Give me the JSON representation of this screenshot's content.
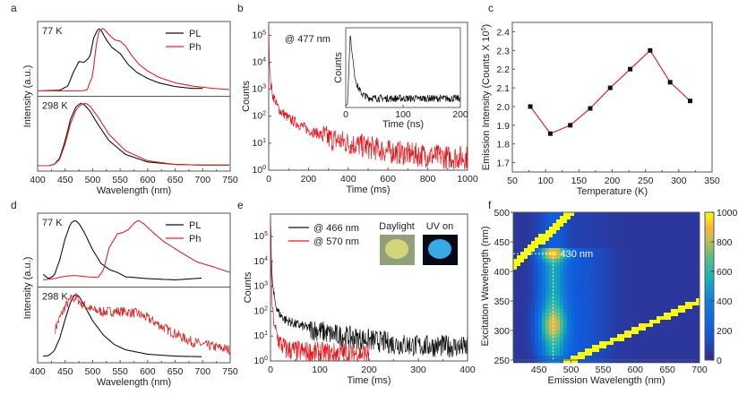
{
  "figure": {
    "panel_labels": [
      "a",
      "b",
      "c",
      "d",
      "e",
      "f"
    ]
  },
  "chart_data": [
    {
      "id": "a",
      "type": "line",
      "xlabel": "Wavelength (nm)",
      "ylabel": "Intensity (a.u.)",
      "xlim": [
        400,
        750
      ],
      "xticks": [
        400,
        450,
        500,
        550,
        600,
        650,
        700,
        750
      ],
      "legend": {
        "placement": "top-right",
        "entries": [
          {
            "name": "PL",
            "color": "#111111"
          },
          {
            "name": "Ph",
            "color": "#d42a2a"
          }
        ]
      },
      "subpanels": [
        {
          "label": "77 K",
          "series": [
            {
              "name": "PL",
              "color": "#111111",
              "x": [
                400,
                440,
                455,
                465,
                475,
                485,
                495,
                502,
                510,
                515,
                525,
                535,
                550,
                565,
                580,
                600,
                620,
                650,
                680,
                700
              ],
              "y": [
                0,
                0.01,
                0.08,
                0.3,
                0.47,
                0.46,
                0.55,
                0.85,
                1.0,
                0.98,
                0.82,
                0.7,
                0.6,
                0.42,
                0.3,
                0.2,
                0.13,
                0.07,
                0.04,
                0.04
              ]
            },
            {
              "name": "Ph",
              "color": "#d42a2a",
              "x": [
                400,
                480,
                490,
                500,
                505,
                510,
                515,
                520,
                530,
                540,
                550,
                560,
                570,
                585,
                600,
                620,
                650,
                680,
                720,
                750
              ],
              "y": [
                0,
                0,
                0.02,
                0.25,
                0.62,
                0.92,
                0.99,
                1.0,
                0.9,
                0.82,
                0.8,
                0.72,
                0.58,
                0.42,
                0.32,
                0.22,
                0.13,
                0.08,
                0.04,
                0.02
              ]
            }
          ]
        },
        {
          "label": "298 K",
          "series": [
            {
              "name": "PL",
              "color": "#111111",
              "x": [
                400,
                420,
                430,
                440,
                450,
                460,
                470,
                478,
                485,
                495,
                510,
                530,
                560,
                600,
                650,
                700,
                750
              ],
              "y": [
                0,
                0,
                0.02,
                0.12,
                0.4,
                0.75,
                0.95,
                1.0,
                0.98,
                0.88,
                0.66,
                0.4,
                0.18,
                0.06,
                0.02,
                0.01,
                0.01
              ]
            },
            {
              "name": "Ph",
              "color": "#d42a2a",
              "x": [
                400,
                420,
                430,
                440,
                450,
                460,
                470,
                480,
                488,
                495,
                510,
                530,
                560,
                600,
                650,
                700,
                750
              ],
              "y": [
                0,
                0,
                0.02,
                0.1,
                0.35,
                0.68,
                0.9,
                0.99,
                1.0,
                0.96,
                0.78,
                0.5,
                0.24,
                0.08,
                0.02,
                0.01,
                0.01
              ]
            }
          ]
        }
      ]
    },
    {
      "id": "b",
      "type": "line",
      "title": "",
      "annotation": "@ 477 nm",
      "xlabel": "Time (ms)",
      "ylabel": "Counts",
      "xlim": [
        0,
        1000
      ],
      "yscale": "log",
      "ylim": [
        1,
        300000
      ],
      "xticks": [
        0,
        200,
        400,
        600,
        800,
        1000
      ],
      "yticks": [
        "10^0",
        "10^1",
        "10^2",
        "10^3",
        "10^4",
        "10^5"
      ],
      "series": [
        {
          "name": "@ 477 nm",
          "color": "#e0191e",
          "x": [
            0,
            2,
            5,
            10,
            20,
            40,
            60,
            100,
            150,
            200,
            300,
            400,
            500,
            600,
            700,
            800,
            900,
            1000
          ],
          "y": [
            200000,
            30000,
            5000,
            1500,
            600,
            250,
            150,
            80,
            50,
            30,
            15,
            10,
            7,
            5,
            4,
            3.5,
            3,
            3
          ]
        }
      ],
      "inset": {
        "xlabel": "Time (ns)",
        "ylabel": "Counts",
        "xlim": [
          0,
          200
        ],
        "xticks": [
          0,
          100,
          200
        ],
        "series": [
          {
            "name": "inset",
            "color": "#111111",
            "x": [
              0,
              3,
              5,
              8,
              10,
              15,
              20,
              25,
              30,
              40,
              60,
              100,
              150,
              200
            ],
            "y": [
              0,
              0.02,
              0.4,
              1.0,
              0.8,
              0.45,
              0.28,
              0.2,
              0.15,
              0.11,
              0.1,
              0.1,
              0.1,
              0.1
            ]
          }
        ]
      }
    },
    {
      "id": "c",
      "type": "line",
      "xlabel": "Temperature (K)",
      "ylabel": "Emission Intensity (Counts X 10^5)",
      "xlim": [
        50,
        350
      ],
      "ylim": [
        1.65,
        2.45
      ],
      "xticks": [
        50,
        100,
        150,
        200,
        250,
        300,
        350
      ],
      "yticks": [
        1.7,
        1.8,
        1.9,
        2.0,
        2.1,
        2.2,
        2.3,
        2.4
      ],
      "series": [
        {
          "name": "Emission Intensity",
          "line_color": "#d42a2a",
          "marker_color": "#111111",
          "x": [
            77,
            107,
            137,
            167,
            197,
            227,
            257,
            287,
            317
          ],
          "y": [
            2.0,
            1.855,
            1.9,
            1.99,
            2.1,
            2.2,
            2.3,
            2.13,
            2.03
          ]
        }
      ]
    },
    {
      "id": "d",
      "type": "line",
      "xlabel": "Wavelength (nm)",
      "ylabel": "Intensity (a.u.)",
      "xlim": [
        400,
        750
      ],
      "xticks": [
        400,
        450,
        500,
        550,
        600,
        650,
        700,
        750
      ],
      "legend": {
        "placement": "top-right",
        "entries": [
          {
            "name": "PL",
            "color": "#111111"
          },
          {
            "name": "Ph",
            "color": "#d42a2a"
          }
        ]
      },
      "subpanels": [
        {
          "label": "77 K",
          "series": [
            {
              "name": "PL",
              "color": "#111111",
              "x": [
                410,
                420,
                430,
                440,
                450,
                460,
                468,
                475,
                485,
                500,
                515,
                530,
                545,
                560,
                600,
                650,
                700
              ],
              "y": [
                0.12,
                0.05,
                0.1,
                0.35,
                0.7,
                0.95,
                1.0,
                0.95,
                0.8,
                0.52,
                0.3,
                0.2,
                0.15,
                0.08,
                0.05,
                0.03,
                0.06
              ]
            },
            {
              "name": "Ph",
              "color": "#d42a2a",
              "x": [
                410,
                430,
                450,
                468,
                490,
                510,
                520,
                530,
                545,
                555,
                565,
                575,
                583,
                595,
                610,
                630,
                660,
                690,
                720,
                750
              ],
              "y": [
                0.03,
                0.05,
                0.09,
                0.1,
                0.08,
                0.07,
                0.2,
                0.55,
                0.78,
                0.8,
                0.85,
                0.95,
                1.0,
                0.93,
                0.8,
                0.65,
                0.48,
                0.32,
                0.24,
                0.15
              ]
            }
          ]
        },
        {
          "label": "298 K",
          "series": [
            {
              "name": "PL",
              "color": "#111111",
              "x": [
                410,
                420,
                430,
                440,
                450,
                460,
                468,
                475,
                485,
                500,
                520,
                540,
                560,
                600,
                650,
                700
              ],
              "y": [
                0.02,
                0.03,
                0.1,
                0.3,
                0.6,
                0.88,
                1.0,
                0.97,
                0.82,
                0.58,
                0.35,
                0.2,
                0.12,
                0.05,
                0.02,
                0.01
              ]
            },
            {
              "name": "Ph",
              "color": "#d42a2a",
              "x": [
                432,
                440,
                450,
                460,
                470,
                480,
                500,
                520,
                540,
                560,
                580,
                600,
                620,
                640,
                660,
                680,
                700,
                720,
                750
              ],
              "y": [
                0.45,
                0.62,
                0.8,
                0.92,
                0.95,
                0.85,
                0.75,
                0.72,
                0.73,
                0.72,
                0.7,
                0.62,
                0.52,
                0.42,
                0.33,
                0.25,
                0.2,
                0.17,
                0.12
              ]
            }
          ]
        }
      ]
    },
    {
      "id": "e",
      "type": "line",
      "xlabel": "Time (ms)",
      "ylabel": "Counts",
      "xlim": [
        0,
        400
      ],
      "yscale": "log",
      "ylim": [
        1,
        800000
      ],
      "xticks": [
        0,
        100,
        200,
        300,
        400
      ],
      "yticks": [
        "10^0",
        "10^1",
        "10^2",
        "10^3",
        "10^4",
        "10^5"
      ],
      "legend": {
        "placement": "top-left",
        "entries": [
          {
            "name": "@ 466 nm",
            "color": "#111111"
          },
          {
            "name": "@ 570 nm",
            "color": "#e0191e"
          }
        ]
      },
      "series": [
        {
          "name": "@ 466 nm",
          "color": "#111111",
          "x": [
            0,
            1,
            3,
            6,
            10,
            15,
            20,
            30,
            50,
            80,
            120,
            160,
            200,
            250,
            300,
            350,
            400
          ],
          "y": [
            500000,
            20000,
            2000,
            500,
            200,
            100,
            70,
            45,
            30,
            20,
            12,
            9,
            7,
            5,
            4,
            4,
            3.5
          ]
        },
        {
          "name": "@ 570 nm",
          "color": "#e0191e",
          "x": [
            0,
            1,
            3,
            6,
            10,
            15,
            20,
            30,
            50,
            80,
            120,
            160,
            200
          ],
          "y": [
            500000,
            5000,
            200,
            40,
            15,
            8,
            5,
            3,
            2.5,
            2.2,
            2,
            2,
            2
          ]
        }
      ],
      "photos": [
        {
          "label": "Daylight",
          "bg": "#8fa07a",
          "spot": "#d6d47a"
        },
        {
          "label": "UV on",
          "bg": "#050b16",
          "spot": "#3aa7e6"
        }
      ]
    },
    {
      "id": "f",
      "type": "heatmap",
      "xlabel": "Emission Wavelength (nm)",
      "ylabel": "Excitation Wavelength (nm)",
      "xlim": [
        410,
        700
      ],
      "ylim": [
        250,
        500
      ],
      "xticks": [
        450,
        500,
        550,
        600,
        650,
        700
      ],
      "yticks": [
        250,
        300,
        350,
        400,
        450,
        500
      ],
      "colorbar": {
        "min": 0,
        "max": 1000,
        "ticks": [
          0,
          200,
          400,
          600,
          800,
          1000
        ],
        "colormap": "parula"
      },
      "annotation": {
        "text": "430 nm",
        "excitation": 430,
        "emission": 472
      },
      "features": [
        {
          "name": "main emission band",
          "emission_center": 472,
          "excitation_range": [
            260,
            440
          ],
          "peak_excitation": 430,
          "secondary_peak_excitation": 310
        },
        {
          "name": "first-order Rayleigh scatter",
          "relation": "emission = excitation"
        },
        {
          "name": "second-order scatter",
          "relation": "emission = 2 x excitation"
        }
      ]
    }
  ]
}
